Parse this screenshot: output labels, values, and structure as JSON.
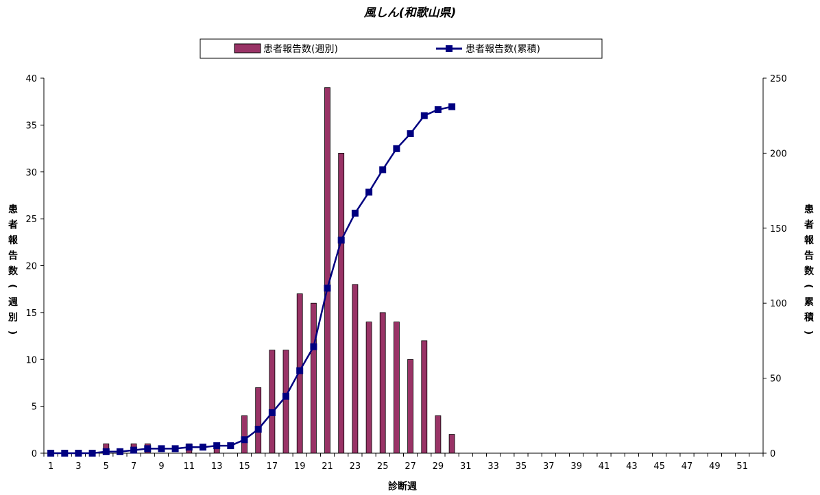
{
  "chart_data": {
    "type": "bar+line",
    "title": "風しん(和歌山県)",
    "xlabel": "診断週",
    "ylabel_left": "患者報告数(週別)",
    "ylabel_right": "患者報告数(累積)",
    "x_range": [
      1,
      52
    ],
    "x_tick_labels": [
      "1",
      "3",
      "5",
      "7",
      "9",
      "11",
      "13",
      "15",
      "17",
      "19",
      "21",
      "23",
      "25",
      "27",
      "29",
      "31",
      "33",
      "35",
      "37",
      "39",
      "41",
      "43",
      "45",
      "47",
      "49",
      "51"
    ],
    "ylim_left": [
      0,
      40
    ],
    "yticks_left": [
      0,
      5,
      10,
      15,
      20,
      25,
      30,
      35,
      40
    ],
    "ylim_right": [
      0,
      250
    ],
    "yticks_right": [
      0,
      50,
      100,
      150,
      200,
      250
    ],
    "grid": false,
    "legend_position": "top-center",
    "series": [
      {
        "name": "患者報告数(週別)",
        "type": "bar",
        "axis": "left",
        "color": "#993366",
        "x": [
          1,
          2,
          3,
          4,
          5,
          6,
          7,
          8,
          9,
          10,
          11,
          12,
          13,
          14,
          15,
          16,
          17,
          18,
          19,
          20,
          21,
          22,
          23,
          24,
          25,
          26,
          27,
          28,
          29,
          30
        ],
        "values": [
          0,
          0,
          0,
          0,
          1,
          0,
          1,
          1,
          0,
          0,
          1,
          0,
          1,
          0,
          4,
          7,
          11,
          11,
          17,
          16,
          39,
          32,
          18,
          14,
          15,
          14,
          10,
          12,
          4,
          2
        ]
      },
      {
        "name": "患者報告数(累積)",
        "type": "line",
        "axis": "right",
        "color": "#000080",
        "x": [
          1,
          2,
          3,
          4,
          5,
          6,
          7,
          8,
          9,
          10,
          11,
          12,
          13,
          14,
          15,
          16,
          17,
          18,
          19,
          20,
          21,
          22,
          23,
          24,
          25,
          26,
          27,
          28,
          29,
          30
        ],
        "values": [
          0,
          0,
          0,
          0,
          1,
          1,
          2,
          3,
          3,
          3,
          4,
          4,
          5,
          5,
          9,
          16,
          27,
          38,
          55,
          71,
          110,
          142,
          160,
          174,
          189,
          203,
          213,
          225,
          229,
          231
        ]
      }
    ]
  }
}
